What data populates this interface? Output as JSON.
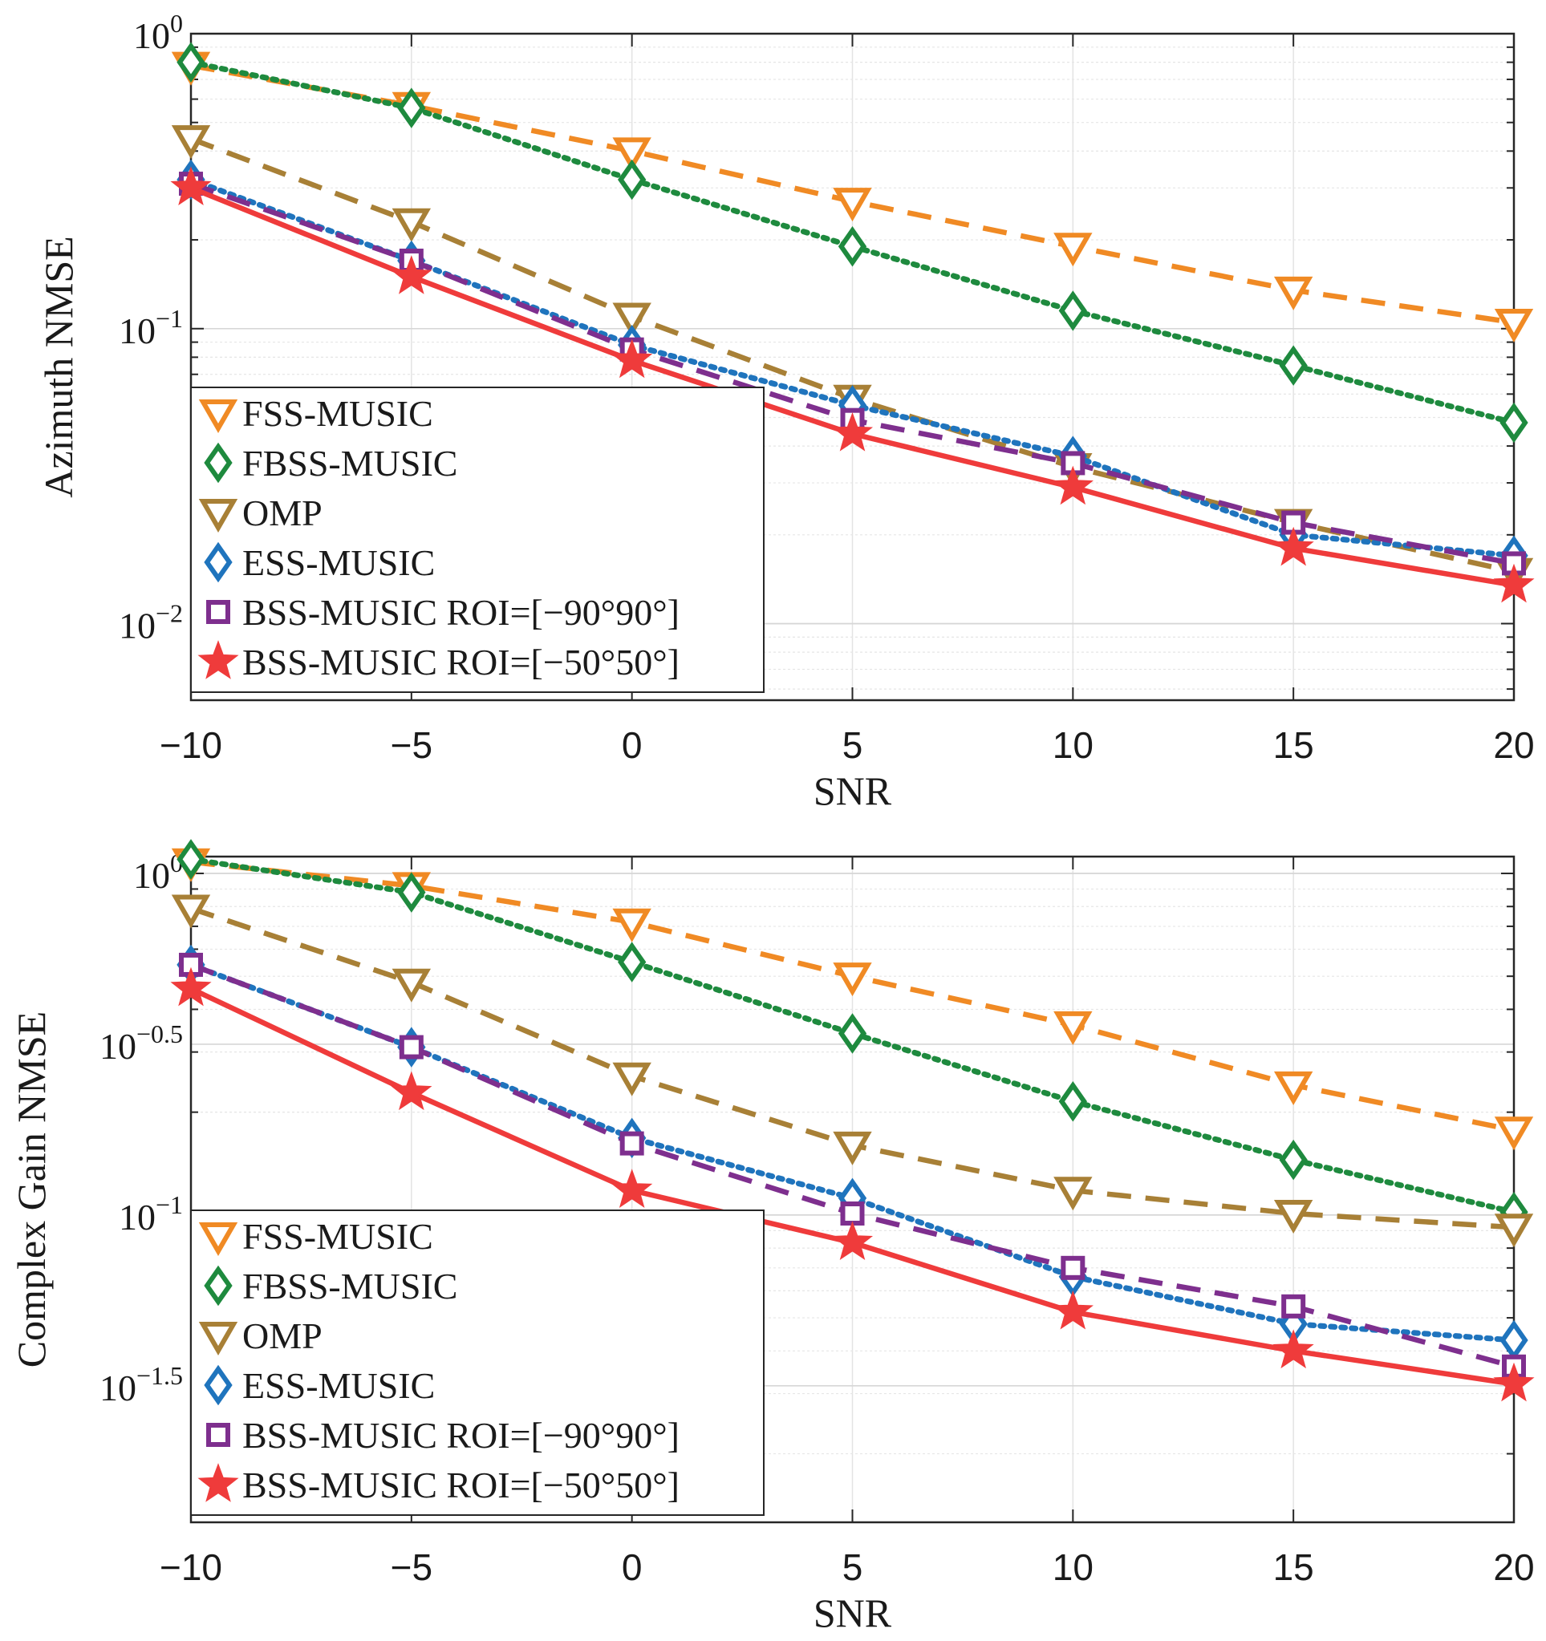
{
  "chart_data": [
    {
      "type": "line",
      "id": "azimuth",
      "title": "",
      "xlabel": "SNR",
      "ylabel": "Azimuth NMSE",
      "yscale": "log",
      "xlim": [
        -10,
        20
      ],
      "ylim": [
        0.0055,
        1.0
      ],
      "grid": true,
      "legend_position": "bottom-left",
      "x_ticks": [
        -10,
        -5,
        0,
        5,
        10,
        15,
        20
      ],
      "x_tick_labels": [
        "−10",
        "−5",
        "0",
        "5",
        "10",
        "15",
        "20"
      ],
      "y_ticks": [
        {
          "value": 1.0,
          "base": "10",
          "exp": "0"
        },
        {
          "value": 0.1,
          "base": "10",
          "exp": "−1"
        },
        {
          "value": 0.01,
          "base": "10",
          "exp": "−2"
        }
      ],
      "x": [
        -10,
        -5,
        0,
        5,
        10,
        15,
        20
      ],
      "series": [
        {
          "name": "FSS-MUSIC",
          "color": "#f08a24",
          "dash": "dashed",
          "marker": "triangle-down",
          "values": [
            0.78,
            0.57,
            0.4,
            0.27,
            0.19,
            0.135,
            0.105
          ]
        },
        {
          "name": "FBSS-MUSIC",
          "color": "#1e8a3e",
          "dash": "dotted",
          "marker": "diamond",
          "values": [
            0.8,
            0.56,
            0.32,
            0.19,
            0.115,
            0.075,
            0.048
          ]
        },
        {
          "name": "OMP",
          "color": "#a88036",
          "dash": "dashed",
          "marker": "triangle-down",
          "values": [
            0.44,
            0.23,
            0.11,
            0.058,
            0.034,
            0.022,
            0.015
          ]
        },
        {
          "name": "ESS-MUSIC",
          "color": "#1f74bd",
          "dash": "dotted",
          "marker": "diamond",
          "values": [
            0.32,
            0.17,
            0.088,
            0.055,
            0.037,
            0.02,
            0.017
          ]
        },
        {
          "name": "BSS-MUSIC ROI=[−90°90°]",
          "color": "#7e2f8e",
          "dash": "dashed",
          "marker": "square",
          "values": [
            0.31,
            0.17,
            0.085,
            0.049,
            0.035,
            0.022,
            0.016
          ]
        },
        {
          "name": "BSS-MUSIC ROI=[−50°50°]",
          "color": "#ef3b3b",
          "dash": "solid",
          "marker": "star",
          "values": [
            0.3,
            0.15,
            0.078,
            0.044,
            0.029,
            0.018,
            0.0135
          ]
        }
      ]
    },
    {
      "type": "line",
      "id": "gain",
      "title": "",
      "xlabel": "SNR",
      "ylabel": "Complex Gain NMSE",
      "yscale": "log",
      "xlim": [
        -10,
        20
      ],
      "ylim": [
        0.0126,
        1.12
      ],
      "grid": true,
      "legend_position": "bottom-left",
      "x_ticks": [
        -10,
        -5,
        0,
        5,
        10,
        15,
        20
      ],
      "x_tick_labels": [
        "−10",
        "−5",
        "0",
        "5",
        "10",
        "15",
        "20"
      ],
      "y_ticks": [
        {
          "value": 1.0,
          "base": "10",
          "exp": "0"
        },
        {
          "value": 0.3162,
          "base": "10",
          "exp": "−0.5"
        },
        {
          "value": 0.1,
          "base": "10",
          "exp": "−1"
        },
        {
          "value": 0.03162,
          "base": "10",
          "exp": "−1.5"
        }
      ],
      "x": [
        -10,
        -5,
        0,
        5,
        10,
        15,
        20
      ],
      "series": [
        {
          "name": "FSS-MUSIC",
          "color": "#f08a24",
          "dash": "dashed",
          "marker": "triangle-down",
          "values": [
            1.08,
            0.92,
            0.72,
            0.5,
            0.36,
            0.24,
            0.177
          ]
        },
        {
          "name": "FBSS-MUSIC",
          "color": "#1e8a3e",
          "dash": "dotted",
          "marker": "diamond",
          "values": [
            1.1,
            0.88,
            0.55,
            0.34,
            0.215,
            0.145,
            0.102
          ]
        },
        {
          "name": "OMP",
          "color": "#a88036",
          "dash": "dashed",
          "marker": "triangle-down",
          "values": [
            0.79,
            0.48,
            0.255,
            0.16,
            0.118,
            0.101,
            0.092
          ]
        },
        {
          "name": "ESS-MUSIC",
          "color": "#1f74bd",
          "dash": "dotted",
          "marker": "diamond",
          "values": [
            0.54,
            0.31,
            0.168,
            0.112,
            0.066,
            0.048,
            0.043
          ]
        },
        {
          "name": "BSS-MUSIC ROI=[−90°90°]",
          "color": "#7e2f8e",
          "dash": "dashed",
          "marker": "square",
          "values": [
            0.54,
            0.31,
            0.162,
            0.101,
            0.07,
            0.054,
            0.036
          ]
        },
        {
          "name": "BSS-MUSIC ROI=[−50°50°]",
          "color": "#ef3b3b",
          "dash": "solid",
          "marker": "star",
          "values": [
            0.46,
            0.228,
            0.118,
            0.083,
            0.052,
            0.04,
            0.032
          ]
        }
      ]
    }
  ]
}
